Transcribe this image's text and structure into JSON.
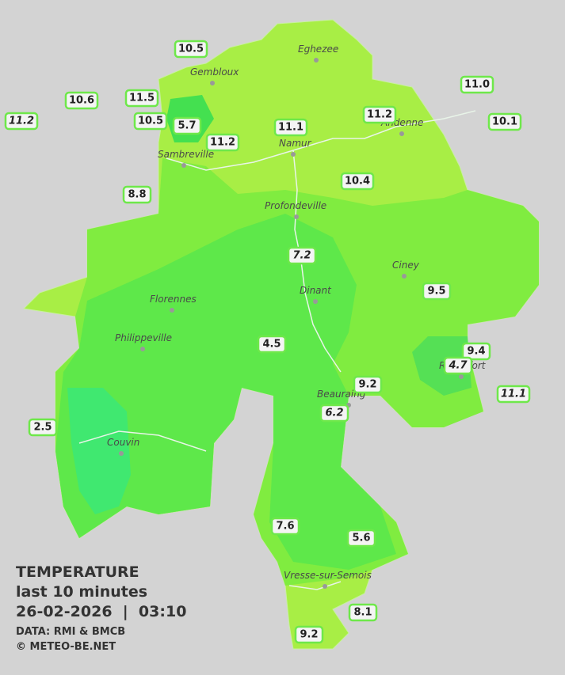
{
  "towns": [
    "Eghezee",
    "Gembloux",
    "Andenne",
    "Namur",
    "Sambreville",
    "Profondeville",
    "Ciney",
    "Dinant",
    "Florennes",
    "Philippeville",
    "Rochefort",
    "Beauraing",
    "Couvin",
    "Vresse-sur-Semois"
  ],
  "stations": [
    {
      "label": "10.5"
    },
    {
      "label": "10.6"
    },
    {
      "label": "11.5"
    },
    {
      "label": "11.2",
      "italic": true
    },
    {
      "label": "10.5"
    },
    {
      "label": "5.7"
    },
    {
      "label": "11.2"
    },
    {
      "label": "11.1"
    },
    {
      "label": "11.2"
    },
    {
      "label": "11.0"
    },
    {
      "label": "10.1"
    },
    {
      "label": "8.8"
    },
    {
      "label": "10.4"
    },
    {
      "label": "7.2",
      "italic": true
    },
    {
      "label": "9.5"
    },
    {
      "label": "4.5"
    },
    {
      "label": "9.4"
    },
    {
      "label": "4.7",
      "italic": true
    },
    {
      "label": "9.2"
    },
    {
      "label": "11.1",
      "italic": true
    },
    {
      "label": "6.2",
      "italic": true
    },
    {
      "label": "2.5"
    },
    {
      "label": "7.6"
    },
    {
      "label": "5.6"
    },
    {
      "label": "8.1"
    },
    {
      "label": "9.2"
    }
  ],
  "footer": {
    "title": "TEMPERATURE",
    "subtitle": "last 10 minutes",
    "timestamp": "26-02-2026  |  03:10",
    "source": "DATA: RMI & BMCB",
    "copyright": "© METEO-BE.NET"
  }
}
